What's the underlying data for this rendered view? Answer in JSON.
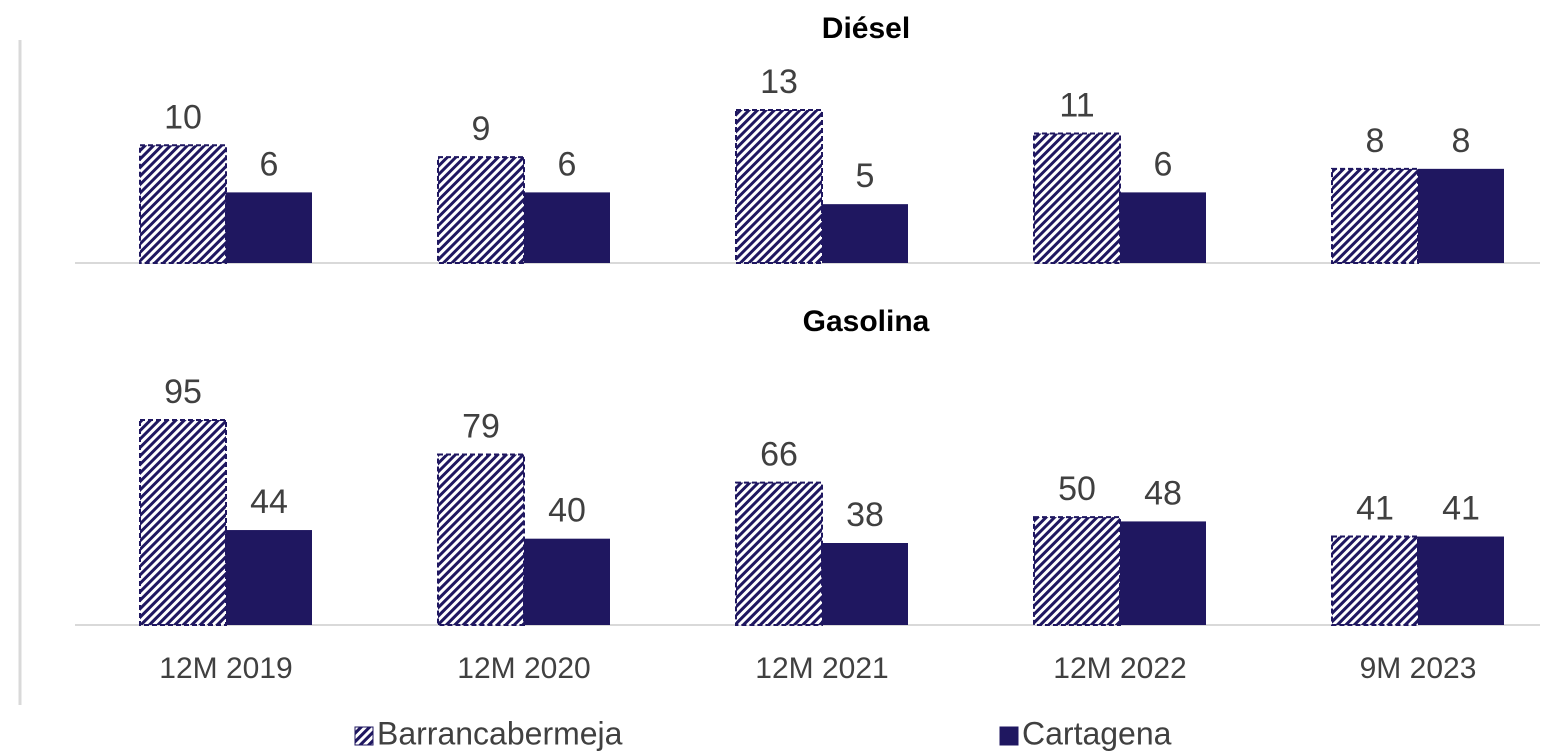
{
  "chart_data": [
    {
      "type": "bar",
      "title": "Diésel",
      "series": [
        {
          "name": "Barrancabermeja",
          "color": "#1f1760",
          "pattern": "hatch",
          "values": [
            10,
            9,
            13,
            11,
            8
          ]
        },
        {
          "name": "Cartagena",
          "color": "#1f1760",
          "values": [
            6,
            6,
            5,
            6,
            8
          ]
        }
      ]
    },
    {
      "type": "bar",
      "title": "Gasolina",
      "categories": [
        "12M 2019",
        "12M 2020",
        "12M 2021",
        "12M 2022",
        "9M 2023"
      ],
      "series": [
        {
          "color": "#1f1760",
          "pattern": "hatch",
          "values": [
            95,
            79,
            66,
            50,
            41
          ]
        },
        {
          "color": "#1f1760",
          "values": [
            44,
            40,
            38,
            48,
            41
          ]
        }
      ]
    }
  ]
}
